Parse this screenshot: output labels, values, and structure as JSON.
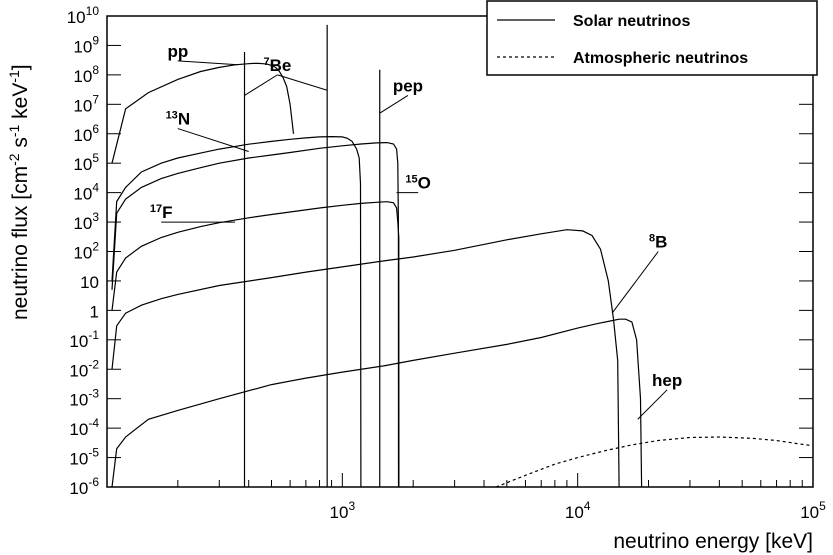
{
  "chart_data": {
    "type": "line",
    "xscale": "log",
    "yscale": "log",
    "xlim": [
      100,
      100000
    ],
    "ylim": [
      1e-06,
      10000000000.0
    ],
    "xlabel": "neutrino energy [keV]",
    "ylabel": "neutrino flux [cm-2 s-1 keV-1]",
    "x_ticks": [
      "10^3",
      "10^4",
      "10^5"
    ],
    "y_ticks": [
      "10^-6",
      "10^-5",
      "10^-4",
      "10^-3",
      "10^-2",
      "10^-1",
      "1",
      "10",
      "10^2",
      "10^3",
      "10^4",
      "10^5",
      "10^6",
      "10^7",
      "10^8",
      "10^9",
      "10^10"
    ],
    "grid": false,
    "legend_position": "top-right",
    "legend": [
      {
        "label": "Solar neutrinos",
        "style": "solid"
      },
      {
        "label": "Atmospheric neutrinos",
        "style": "dashed"
      }
    ],
    "series": [
      {
        "name": "pp",
        "group": "Solar neutrinos",
        "style": "solid",
        "x": [
          105,
          120,
          150,
          200,
          250,
          300,
          350,
          400,
          420,
          440,
          460,
          480,
          500,
          520,
          540,
          560,
          580,
          600,
          620
        ],
        "y": [
          100000.0,
          7000000.0,
          25000000.0,
          70000000.0,
          130000000.0,
          180000000.0,
          220000000.0,
          240000000.0,
          245000000.0,
          245000000.0,
          240000000.0,
          230000000.0,
          210000000.0,
          180000000.0,
          130000000.0,
          80000000.0,
          40000000.0,
          10000000.0,
          1000000.0
        ]
      },
      {
        "name": "7Be",
        "group": "Solar neutrinos",
        "style": "solid",
        "lines": [
          {
            "x": 384,
            "y": 600000000.0
          },
          {
            "x": 862,
            "y": 5000000000.0
          }
        ]
      },
      {
        "name": "pep",
        "group": "Solar neutrinos",
        "style": "solid",
        "lines": [
          {
            "x": 1442,
            "y": 150000000.0
          }
        ]
      },
      {
        "name": "13N",
        "group": "Solar neutrinos",
        "style": "solid",
        "x": [
          105,
          110,
          120,
          140,
          170,
          200,
          250,
          300,
          400,
          500,
          600,
          700,
          800,
          900,
          1000,
          1050,
          1100,
          1150,
          1180,
          1195,
          1199
        ],
        "y": [
          10.0,
          5000.0,
          15000.0,
          50000.0,
          100000.0,
          150000.0,
          220000.0,
          300000.0,
          440000.0,
          550000.0,
          650000.0,
          720000.0,
          780000.0,
          800000.0,
          780000.0,
          700000.0,
          550000.0,
          300000.0,
          150000.0,
          20000.0,
          1e-06
        ]
      },
      {
        "name": "15O",
        "group": "Solar neutrinos",
        "style": "solid",
        "x": [
          105,
          110,
          120,
          140,
          170,
          200,
          250,
          300,
          400,
          500,
          600,
          800,
          1000,
          1200,
          1400,
          1550,
          1650,
          1700,
          1720,
          1730,
          1732
        ],
        "y": [
          5,
          2000.0,
          6000.0,
          15000.0,
          30000.0,
          45000.0,
          70000.0,
          100000.0,
          150000.0,
          190000.0,
          230000.0,
          320000.0,
          390000.0,
          450000.0,
          490000.0,
          500000.0,
          450000.0,
          300000.0,
          100000.0,
          1000.0,
          1e-06
        ]
      },
      {
        "name": "17F",
        "group": "Solar neutrinos",
        "style": "solid",
        "x": [
          105,
          110,
          120,
          140,
          170,
          200,
          250,
          300,
          400,
          500,
          600,
          800,
          1000,
          1200,
          1400,
          1550,
          1650,
          1700,
          1720,
          1738,
          1740
        ],
        "y": [
          1,
          20,
          60,
          150,
          300,
          450,
          700,
          950,
          1400,
          1800,
          2200,
          3000,
          3700,
          4300,
          4700,
          4900,
          4500,
          3000,
          1000,
          300,
          1e-06
        ]
      },
      {
        "name": "8B",
        "group": "Solar neutrinos",
        "style": "solid",
        "x": [
          105,
          110,
          120,
          140,
          170,
          200,
          300,
          500,
          700,
          1000,
          1500,
          2000,
          3000,
          5000,
          7000,
          9000,
          10500,
          11500,
          12500,
          13500,
          14200,
          14800,
          15000
        ],
        "y": [
          0.01,
          0.3,
          0.8,
          1.5,
          2.5,
          3.5,
          7,
          13,
          20,
          30,
          48,
          65,
          110,
          250,
          400,
          550,
          500,
          350,
          120,
          10,
          0.5,
          0.02,
          1e-06
        ]
      },
      {
        "name": "hep",
        "group": "Solar neutrinos",
        "style": "solid",
        "x": [
          105,
          110,
          120,
          150,
          200,
          300,
          500,
          700,
          1000,
          1500,
          2000,
          3000,
          5000,
          7000,
          10000,
          12000,
          14000,
          15000,
          16000,
          17000,
          17800,
          18500,
          18700
        ],
        "y": [
          1e-06,
          2e-05,
          5e-05,
          0.0002,
          0.0004,
          0.001,
          0.003,
          0.005,
          0.008,
          0.013,
          0.02,
          0.035,
          0.07,
          0.12,
          0.25,
          0.35,
          0.45,
          0.5,
          0.5,
          0.4,
          0.1,
          0.001,
          1e-06
        ]
      },
      {
        "name": "Atmospheric neutrinos",
        "group": "Atmospheric neutrinos",
        "style": "dashed",
        "x": [
          4500,
          6000,
          8000,
          10000,
          13000,
          17000,
          22000,
          30000,
          40000,
          55000,
          70000,
          85000,
          100000
        ],
        "y": [
          1e-06,
          2.5e-06,
          6e-06,
          1e-05,
          1.7e-05,
          2.7e-05,
          3.8e-05,
          4.8e-05,
          5e-05,
          4.5e-05,
          3.8e-05,
          3e-05,
          2.5e-05
        ]
      }
    ],
    "annotations": [
      {
        "text": "pp",
        "x": 200,
        "y": 300000000.0,
        "target": {
          "x": 360,
          "y": 220000000.0
        }
      },
      {
        "text": "7Be",
        "x": 530,
        "y": 100000000.0,
        "targets": [
          {
            "x": 384,
            "y": 20000000.0
          },
          {
            "x": 862,
            "y": 30000000.0
          }
        ]
      },
      {
        "text": "pep",
        "x": 1900,
        "y": 20000000.0,
        "target": {
          "x": 1442,
          "y": 5000000.0
        }
      },
      {
        "text": "13N",
        "x": 200,
        "y": 1500000.0,
        "target": {
          "x": 400,
          "y": 250000.0
        }
      },
      {
        "text": "15O",
        "x": 2100,
        "y": 10000.0,
        "target": {
          "x": 1700,
          "y": 10000.0
        }
      },
      {
        "text": "17F",
        "x": 170,
        "y": 1000,
        "target": {
          "x": 350,
          "y": 1000
        }
      },
      {
        "text": "8B",
        "x": 22000,
        "y": 100,
        "target": {
          "x": 14000,
          "y": 0.8
        }
      },
      {
        "text": "hep",
        "x": 24000,
        "y": 0.002,
        "target": {
          "x": 18000,
          "y": 0.0002
        }
      }
    ]
  }
}
